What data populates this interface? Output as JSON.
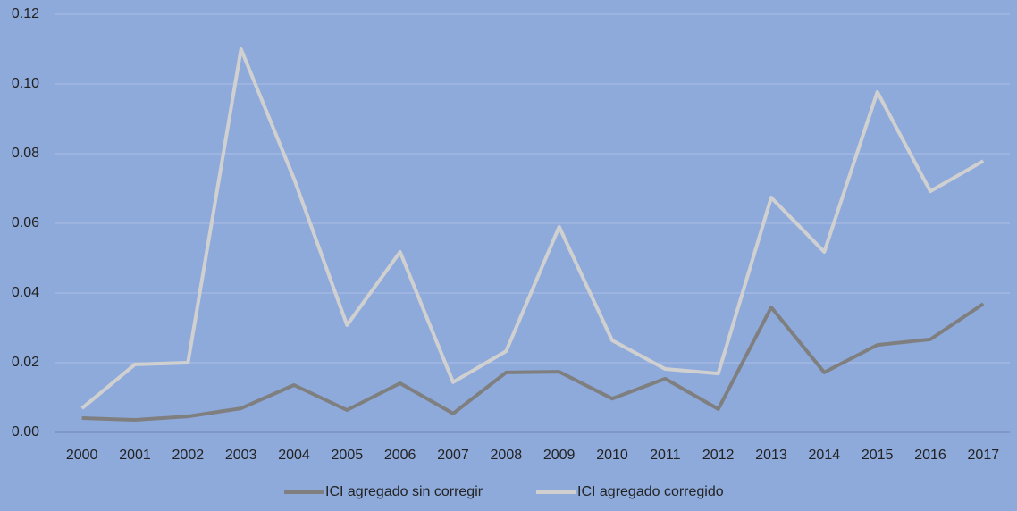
{
  "chart_data": {
    "type": "line",
    "categories": [
      "2000",
      "2001",
      "2002",
      "2003",
      "2004",
      "2005",
      "2006",
      "2007",
      "2008",
      "2009",
      "2010",
      "2011",
      "2012",
      "2013",
      "2014",
      "2015",
      "2016",
      "2017"
    ],
    "series": [
      {
        "name": "ICI agregado sin corregir",
        "color": "#7f7f7f",
        "values": [
          0.0041,
          0.0036,
          0.0046,
          0.0069,
          0.0136,
          0.0064,
          0.0141,
          0.0054,
          0.0172,
          0.0174,
          0.0097,
          0.0154,
          0.0067,
          0.0359,
          0.0172,
          0.0251,
          0.0267,
          0.0369
        ]
      },
      {
        "name": "ICI agregado corregido",
        "color": "#d0d0d0",
        "values": [
          0.0069,
          0.0195,
          0.02,
          0.11,
          0.0728,
          0.0308,
          0.0518,
          0.0144,
          0.0233,
          0.059,
          0.0264,
          0.0182,
          0.0169,
          0.0674,
          0.0518,
          0.0977,
          0.0692,
          0.0779
        ]
      }
    ],
    "ylim": [
      0,
      0.12
    ],
    "yticks": [
      {
        "value": 0,
        "label": "0.00"
      },
      {
        "value": 0.02,
        "label": "0.02"
      },
      {
        "value": 0.04,
        "label": "0.04"
      },
      {
        "value": 0.06,
        "label": "0.06"
      },
      {
        "value": 0.08,
        "label": "0.08"
      },
      {
        "value": 0.1,
        "label": "0.10"
      },
      {
        "value": 0.12,
        "label": "0.12"
      }
    ],
    "grid": true,
    "legend": "bottom"
  }
}
